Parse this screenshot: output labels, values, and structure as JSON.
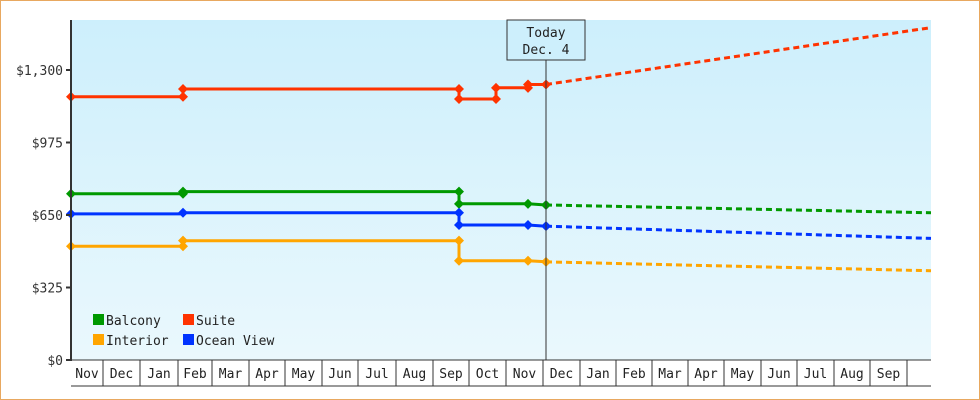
{
  "chart_data": {
    "type": "line",
    "title": "",
    "xlabel": "",
    "ylabel": "",
    "ylim": [
      0,
      1300
    ],
    "y_ticks": [
      {
        "value": 0,
        "label": "$0"
      },
      {
        "value": 325,
        "label": "$325"
      },
      {
        "value": 650,
        "label": "$650"
      },
      {
        "value": 975,
        "label": "$975"
      },
      {
        "value": 1300,
        "label": "$1,300"
      }
    ],
    "x_months": [
      "Nov",
      "Dec",
      "Jan",
      "Feb",
      "Mar",
      "Apr",
      "May",
      "Jun",
      "Jul",
      "Aug",
      "Sep",
      "Oct",
      "Nov",
      "Dec",
      "Jan",
      "Feb",
      "Mar",
      "Apr",
      "May",
      "Jun",
      "Jul",
      "Aug",
      "Sep",
      ""
    ],
    "x_month_bounds": [
      71,
      103,
      140,
      178,
      212,
      249,
      285,
      322,
      358,
      396,
      433,
      469,
      506,
      543,
      580,
      616,
      652,
      688,
      724,
      761,
      797,
      834,
      870,
      907,
      931
    ],
    "today_marker": {
      "line1": "Today",
      "line2": "Dec. 4",
      "x": 546
    },
    "legend": [
      {
        "name": "Balcony",
        "color": "#009900"
      },
      {
        "name": "Suite",
        "color": "#ff3300"
      },
      {
        "name": "Interior",
        "color": "#ffa500"
      },
      {
        "name": "Ocean View",
        "color": "#0033ff"
      }
    ],
    "series": [
      {
        "name": "Suite",
        "color": "#ff3300",
        "history": [
          [
            71,
            1180
          ],
          [
            183,
            1180
          ],
          [
            183,
            1215
          ],
          [
            459,
            1215
          ],
          [
            459,
            1170
          ],
          [
            496,
            1170
          ],
          [
            496,
            1220
          ],
          [
            528,
            1220
          ],
          [
            528,
            1235
          ],
          [
            546,
            1235
          ]
        ],
        "markers": [
          [
            71,
            1180
          ],
          [
            183,
            1180
          ],
          [
            183,
            1215
          ],
          [
            459,
            1215
          ],
          [
            459,
            1170
          ],
          [
            496,
            1170
          ],
          [
            496,
            1220
          ],
          [
            528,
            1220
          ],
          [
            528,
            1235
          ],
          [
            546,
            1235
          ]
        ],
        "forecast": [
          [
            546,
            1235
          ],
          [
            931,
            1490
          ]
        ]
      },
      {
        "name": "Balcony",
        "color": "#009900",
        "history": [
          [
            71,
            745
          ],
          [
            183,
            745
          ],
          [
            183,
            755
          ],
          [
            459,
            755
          ],
          [
            459,
            700
          ],
          [
            528,
            700
          ],
          [
            546,
            695
          ]
        ],
        "markers": [
          [
            71,
            745
          ],
          [
            183,
            745
          ],
          [
            183,
            755
          ],
          [
            459,
            755
          ],
          [
            459,
            700
          ],
          [
            528,
            700
          ],
          [
            546,
            695
          ]
        ],
        "forecast": [
          [
            546,
            695
          ],
          [
            931,
            660
          ]
        ]
      },
      {
        "name": "Ocean View",
        "color": "#0033ff",
        "history": [
          [
            71,
            655
          ],
          [
            183,
            655
          ],
          [
            183,
            660
          ],
          [
            459,
            660
          ],
          [
            459,
            605
          ],
          [
            528,
            605
          ],
          [
            546,
            600
          ]
        ],
        "markers": [
          [
            71,
            655
          ],
          [
            183,
            660
          ],
          [
            459,
            660
          ],
          [
            459,
            605
          ],
          [
            528,
            605
          ],
          [
            546,
            600
          ]
        ],
        "forecast": [
          [
            546,
            600
          ],
          [
            931,
            545
          ]
        ]
      },
      {
        "name": "Interior",
        "color": "#ffa500",
        "history": [
          [
            71,
            510
          ],
          [
            183,
            510
          ],
          [
            183,
            535
          ],
          [
            459,
            535
          ],
          [
            459,
            445
          ],
          [
            528,
            445
          ],
          [
            546,
            440
          ]
        ],
        "markers": [
          [
            71,
            510
          ],
          [
            183,
            510
          ],
          [
            183,
            535
          ],
          [
            459,
            535
          ],
          [
            459,
            445
          ],
          [
            528,
            445
          ],
          [
            546,
            440
          ]
        ],
        "forecast": [
          [
            546,
            440
          ],
          [
            931,
            400
          ]
        ]
      }
    ]
  }
}
